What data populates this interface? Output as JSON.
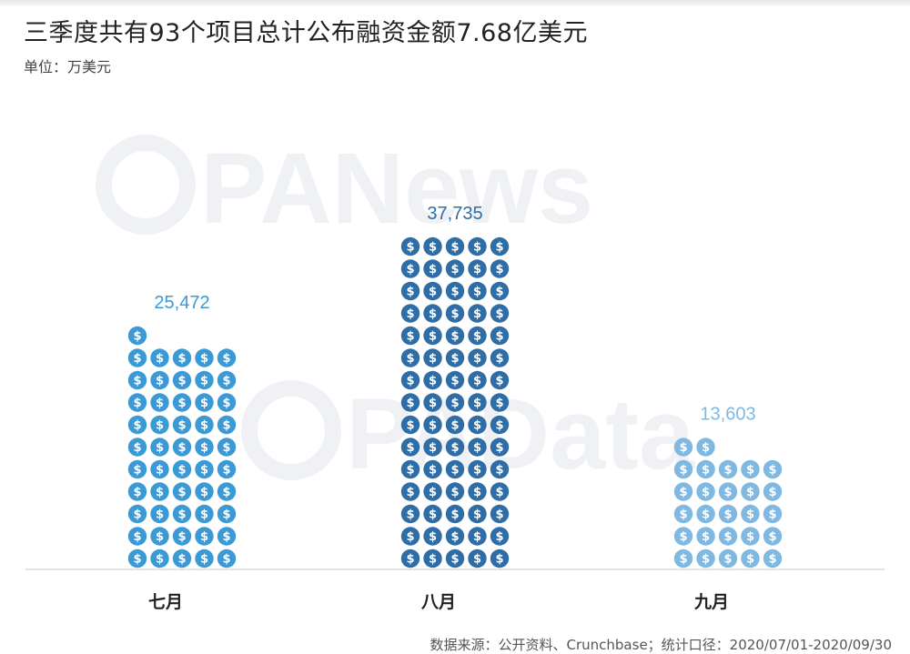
{
  "header": {
    "title": "三季度共有93个项目总计公布融资金额7.68亿美元",
    "unit": "单位：万美元"
  },
  "footer": {
    "source": "数据来源：公开资料、Crunchbase；统计口径：2020/07/01-2020/09/30"
  },
  "watermarks": [
    "PANews",
    "PAData"
  ],
  "chart_data": {
    "type": "bar",
    "title": "三季度共有93个项目总计公布融资金额7.68亿美元",
    "ylabel": "单位：万美元",
    "categories": [
      "七月",
      "八月",
      "九月"
    ],
    "values": [
      25472,
      37735,
      13603
    ],
    "value_labels": [
      "25,472",
      "37,735",
      "13,603"
    ],
    "colors": [
      "#3b9ad6",
      "#2f6da6",
      "#7fb9e2"
    ],
    "icon": "dollar-coin-icon"
  }
}
